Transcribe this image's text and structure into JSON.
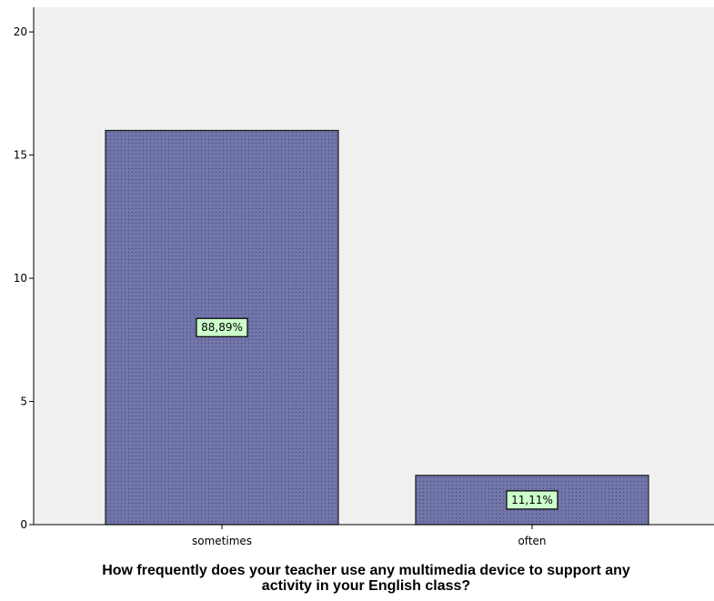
{
  "chart_data": {
    "type": "bar",
    "categories": [
      "sometimes",
      "often"
    ],
    "values": [
      16,
      2
    ],
    "data_labels": [
      "88,89%",
      "11,11%"
    ],
    "xlabel": "How frequently does your teacher use any multimedia device to support any\nactivity in your English class?",
    "ylabel": "",
    "ylim": [
      0,
      21
    ],
    "yticks": [
      "0",
      "5",
      "10",
      "15",
      "20"
    ],
    "grid": false,
    "legend": "none"
  },
  "colors": {
    "plot_background": "#f0f0f0",
    "bar_fill": "#7275a8",
    "bar_dot": "#3f4275",
    "bar_stroke": "#1a1a1a",
    "label_fill": "#ccffcc",
    "axis": "#000000"
  }
}
